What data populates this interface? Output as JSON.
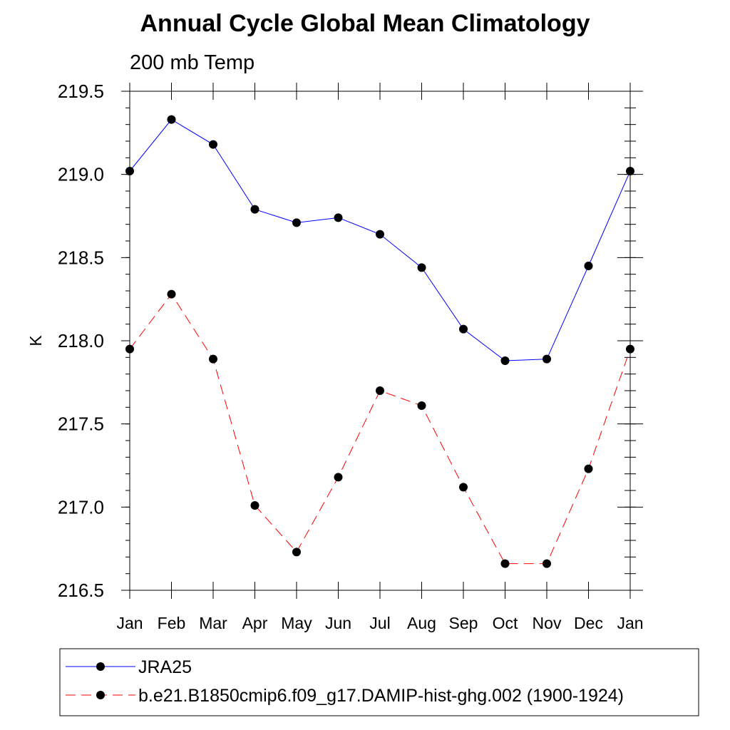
{
  "chart_data": {
    "type": "line",
    "title": "Annual Cycle Global Mean Climatology",
    "subtitle": "200 mb Temp",
    "xlabel": "",
    "ylabel": "K",
    "categories": [
      "Jan",
      "Feb",
      "Mar",
      "Apr",
      "May",
      "Jun",
      "Jul",
      "Aug",
      "Sep",
      "Oct",
      "Nov",
      "Dec",
      "Jan"
    ],
    "ylim": [
      216.5,
      219.5
    ],
    "yticks": [
      "216.5",
      "217.0",
      "217.5",
      "218.0",
      "218.5",
      "219.0",
      "219.5"
    ],
    "series": [
      {
        "name": "JRA25",
        "color": "#0000ff",
        "dash": "solid",
        "values": [
          219.02,
          219.33,
          219.18,
          218.79,
          218.71,
          218.74,
          218.64,
          218.44,
          218.07,
          217.88,
          217.89,
          218.45,
          219.02
        ]
      },
      {
        "name": "b.e21.B1850cmip6.f09_g17.DAMIP-hist-ghg.002 (1900-1924)",
        "color": "#ff0000",
        "dash": "dashed",
        "values": [
          217.95,
          218.28,
          217.89,
          217.01,
          216.73,
          217.18,
          217.7,
          217.61,
          217.12,
          216.66,
          216.66,
          217.23,
          217.95
        ]
      }
    ]
  }
}
